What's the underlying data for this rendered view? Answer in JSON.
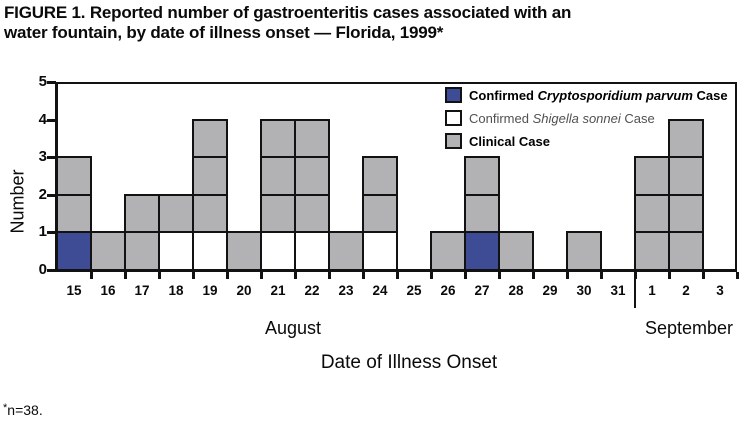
{
  "title": {
    "line1": "FIGURE 1. Reported number of gastroenteritis cases associated with an",
    "line2": "water fountain, by date of illness onset — Florida, 1999*"
  },
  "footnote": {
    "marker": "*",
    "text": "n=38."
  },
  "axes": {
    "y_label": "Number",
    "x_label": "Date of Illness Onset",
    "y_tick_labels": [
      "5",
      "4",
      "3",
      "2",
      "1",
      "0"
    ],
    "month_labels": {
      "august": "August",
      "september": "September"
    }
  },
  "legend": {
    "items": [
      {
        "key": "crypto",
        "swatch": "#3E4C96",
        "prefix": "Confirmed ",
        "species": "Cryptosporidium parvum",
        "suffix": " Case",
        "emphasis": "bold"
      },
      {
        "key": "shigella",
        "swatch": "#FFFFFF",
        "prefix": "Confirmed ",
        "species": "Shigella sonnei",
        "suffix": " Case",
        "emphasis": "normal"
      },
      {
        "key": "clinical",
        "swatch": "#B2B2B4",
        "prefix": "Clinical Case",
        "species": "",
        "suffix": "",
        "emphasis": "bold"
      }
    ]
  },
  "colors": {
    "crypto": "#3E4C96",
    "shigella": "#FFFFFF",
    "clinical": "#B2B2B4",
    "line": "#121212"
  },
  "chart_data": {
    "type": "bar",
    "subtype": "stacked-unit-case epi curve",
    "title": "FIGURE 1. Reported number of gastroenteritis cases associated with an water fountain, by date of illness onset — Florida, 1999*",
    "xlabel": "Date of Illness Onset",
    "ylabel": "Number",
    "ylim": [
      0,
      5
    ],
    "y_ticks": [
      0,
      1,
      2,
      3,
      4,
      5
    ],
    "grid": false,
    "legend_position": "top-right-inside",
    "months": [
      {
        "label": "August",
        "num_columns": 17
      },
      {
        "label": "September",
        "num_columns": 3
      }
    ],
    "categories": [
      "15",
      "16",
      "17",
      "18",
      "19",
      "20",
      "21",
      "22",
      "23",
      "24",
      "25",
      "26",
      "27",
      "28",
      "29",
      "30",
      "31",
      "1",
      "2",
      "3"
    ],
    "series": [
      {
        "name": "Confirmed Cryptosporidium parvum Case",
        "values": [
          1,
          0,
          0,
          0,
          0,
          0,
          0,
          0,
          0,
          0,
          0,
          0,
          1,
          0,
          0,
          0,
          0,
          0,
          0,
          0
        ]
      },
      {
        "name": "Confirmed Shigella sonnei Case",
        "values": [
          0,
          0,
          0,
          1,
          1,
          0,
          1,
          1,
          0,
          1,
          0,
          0,
          0,
          0,
          0,
          0,
          0,
          0,
          0,
          0
        ]
      },
      {
        "name": "Clinical Case",
        "values": [
          2,
          1,
          2,
          1,
          3,
          1,
          3,
          3,
          1,
          2,
          0,
          1,
          2,
          1,
          0,
          1,
          0,
          3,
          4,
          0
        ]
      }
    ],
    "stacks_bottom_to_top": [
      [
        "crypto",
        "clinical",
        "clinical"
      ],
      [
        "clinical"
      ],
      [
        "clinical",
        "clinical"
      ],
      [
        "shigella",
        "clinical"
      ],
      [
        "shigella",
        "clinical",
        "clinical",
        "clinical"
      ],
      [
        "clinical"
      ],
      [
        "shigella",
        "clinical",
        "clinical",
        "clinical"
      ],
      [
        "shigella",
        "clinical",
        "clinical",
        "clinical"
      ],
      [
        "clinical"
      ],
      [
        "shigella",
        "clinical",
        "clinical"
      ],
      [],
      [
        "clinical"
      ],
      [
        "crypto",
        "clinical",
        "clinical"
      ],
      [
        "clinical"
      ],
      [],
      [
        "clinical"
      ],
      [],
      [
        "clinical",
        "clinical",
        "clinical"
      ],
      [
        "clinical",
        "clinical",
        "clinical",
        "clinical"
      ],
      []
    ],
    "total_n": 38
  }
}
